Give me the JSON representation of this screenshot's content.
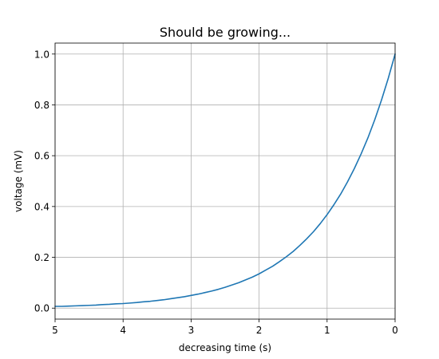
{
  "chart_data": {
    "type": "line",
    "title": "Should be growing...",
    "xlabel": "decreasing time (s)",
    "ylabel": "voltage (mV)",
    "xlim": [
      5,
      0
    ],
    "x_inverted": true,
    "ylim": [
      -0.0432,
      1.0432
    ],
    "xticks": [
      5,
      4,
      3,
      2,
      1,
      0
    ],
    "xtick_labels": [
      "5",
      "4",
      "3",
      "2",
      "1",
      "0"
    ],
    "yticks": [
      0.0,
      0.2,
      0.4,
      0.6,
      0.8,
      1.0
    ],
    "ytick_labels": [
      "0.0",
      "0.2",
      "0.4",
      "0.6",
      "0.8",
      "1.0"
    ],
    "grid": true,
    "series": [
      {
        "color": "#1f77b4",
        "x": [
          0.0,
          0.1,
          0.2,
          0.3,
          0.4,
          0.5,
          0.6,
          0.7,
          0.8,
          0.9,
          1.0,
          1.1,
          1.2,
          1.3,
          1.4,
          1.5,
          1.6,
          1.7,
          1.8,
          1.9,
          2.0,
          2.1,
          2.2,
          2.3,
          2.4,
          2.5,
          2.6,
          2.7,
          2.8,
          2.9,
          3.0,
          3.1,
          3.2,
          3.3,
          3.4,
          3.5,
          3.6,
          3.7,
          3.8,
          3.9,
          4.0,
          4.1,
          4.2,
          4.3,
          4.4,
          4.5,
          4.6,
          4.7,
          4.8,
          4.9,
          5.0
        ],
        "y": [
          1.0,
          0.905,
          0.819,
          0.741,
          0.67,
          0.607,
          0.549,
          0.497,
          0.449,
          0.407,
          0.368,
          0.333,
          0.301,
          0.273,
          0.247,
          0.223,
          0.202,
          0.183,
          0.165,
          0.15,
          0.135,
          0.122,
          0.111,
          0.1,
          0.091,
          0.082,
          0.074,
          0.067,
          0.061,
          0.055,
          0.05,
          0.045,
          0.041,
          0.037,
          0.033,
          0.03,
          0.027,
          0.025,
          0.022,
          0.02,
          0.018,
          0.017,
          0.015,
          0.014,
          0.012,
          0.011,
          0.01,
          0.009,
          0.008,
          0.007,
          0.007
        ]
      }
    ]
  }
}
